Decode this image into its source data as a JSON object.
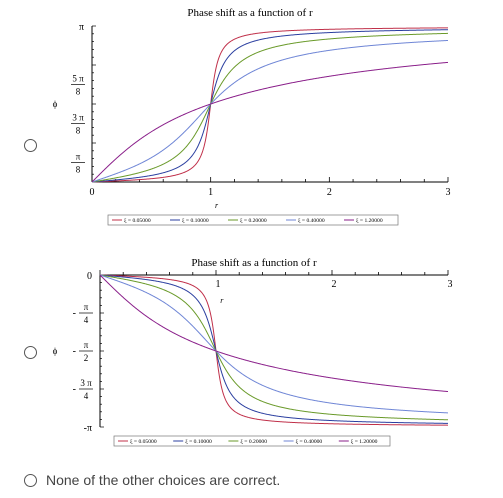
{
  "options": [
    {
      "id": "a",
      "selected": false
    },
    {
      "id": "b",
      "selected": false
    },
    {
      "id": "c",
      "selected": false,
      "label": "None of the other choices are correct."
    }
  ],
  "chart_data": [
    {
      "type": "line",
      "title": "Phase shift as a function of r",
      "xlabel": "r",
      "ylabel": "ϕ",
      "xlim": [
        0,
        3
      ],
      "ylim": [
        0,
        3.14159
      ],
      "x_ticks": [
        "0",
        "1",
        "2",
        "3"
      ],
      "y_ticks": [
        {
          "num": "π",
          "den": "8",
          "value": 0.3927
        },
        {
          "num": "3 π",
          "den": "8",
          "value": 1.1781
        },
        {
          "num": "5 π",
          "den": "8",
          "value": 1.9635
        },
        {
          "num": "π",
          "den": "",
          "value": 3.14159
        }
      ],
      "legend_position": "bottom",
      "series": [
        {
          "name": "ξ = 0.05000",
          "xi": 0.05,
          "color": "#c0304a"
        },
        {
          "name": "ξ = 0.10000",
          "xi": 0.1,
          "color": "#2b3fa0"
        },
        {
          "name": "ξ = 0.20000",
          "xi": 0.2,
          "color": "#6a9a2a"
        },
        {
          "name": "ξ = 0.40000",
          "xi": 0.4,
          "color": "#6f86d6"
        },
        {
          "name": "ξ = 1.20000",
          "xi": 1.2,
          "color": "#8a1f8a"
        }
      ]
    },
    {
      "type": "line",
      "title": "Phase shift as a function of r",
      "xlabel": "r",
      "ylabel": "ϕ",
      "xlim": [
        0,
        3
      ],
      "ylim": [
        -3.14159,
        0
      ],
      "x_ticks": [
        "1",
        "2",
        "3"
      ],
      "y_ticks": [
        {
          "num": "",
          "den": "",
          "label": "0",
          "value": 0
        },
        {
          "num": "π",
          "den": "4",
          "sign": "-",
          "value": -0.7854
        },
        {
          "num": "π",
          "den": "2",
          "sign": "-",
          "value": -1.5708
        },
        {
          "num": "3 π",
          "den": "4",
          "sign": "-",
          "value": -2.3562
        },
        {
          "num": "",
          "den": "",
          "label": "-π",
          "value": -3.14159
        }
      ],
      "legend_position": "bottom",
      "series": [
        {
          "name": "ξ = 0.05000",
          "xi": 0.05,
          "color": "#c0304a"
        },
        {
          "name": "ξ = 0.10000",
          "xi": 0.1,
          "color": "#2b3fa0"
        },
        {
          "name": "ξ = 0.20000",
          "xi": 0.2,
          "color": "#6a9a2a"
        },
        {
          "name": "ξ = 0.40000",
          "xi": 0.4,
          "color": "#6f86d6"
        },
        {
          "name": "ξ = 1.20000",
          "xi": 1.2,
          "color": "#8a1f8a"
        }
      ]
    }
  ]
}
